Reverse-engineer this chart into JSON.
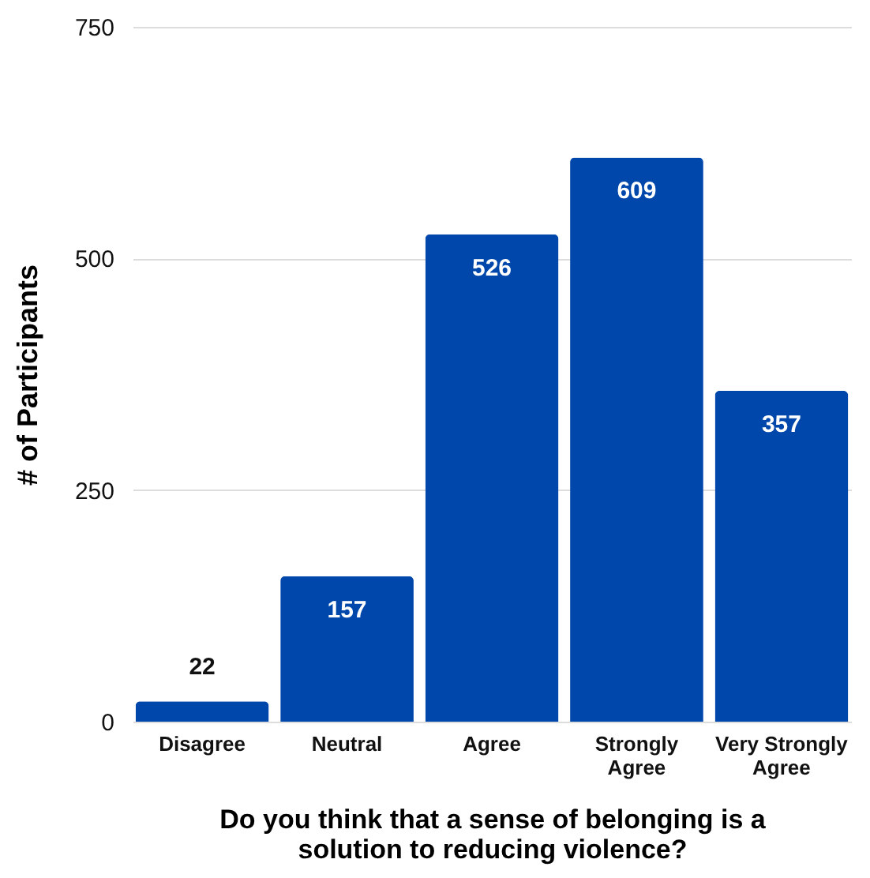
{
  "chart_data": {
    "type": "bar",
    "xlabel": "Do you think that a sense of belonging is a solution to reducing violence?",
    "ylabel": "# of Participants",
    "categories": [
      "Disagree",
      "Neutral",
      "Agree",
      "Strongly Agree",
      "Very Strongly Agree"
    ],
    "values": [
      22,
      157,
      526,
      609,
      357
    ],
    "color": "#0047ab",
    "ylim": [
      0,
      750
    ],
    "yticks": [
      0,
      250,
      500,
      750
    ],
    "grid": "y",
    "data_labels": true
  }
}
